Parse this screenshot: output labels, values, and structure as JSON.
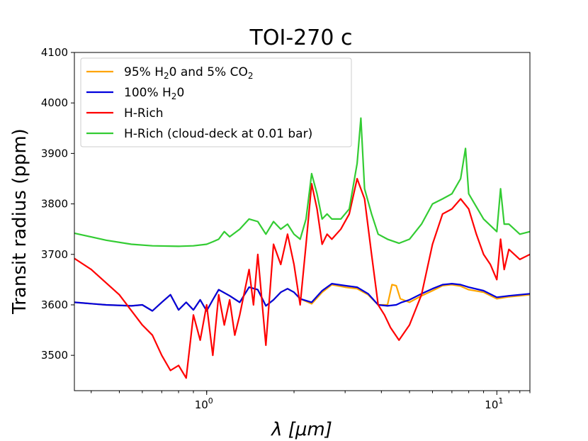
{
  "chart_data": {
    "type": "line",
    "title": "TOI-270 c",
    "xlabel": "λ [μm]",
    "ylabel": "Transit radius (ppm)",
    "xscale": "log",
    "xlim": [
      0.35,
      13
    ],
    "ylim": [
      3430,
      4100
    ],
    "yticks": [
      3500,
      3600,
      3700,
      3800,
      3900,
      4000,
      4100
    ],
    "xticks": [
      {
        "value": 1,
        "base": "10",
        "exp": "0"
      },
      {
        "value": 10,
        "base": "10",
        "exp": "1"
      }
    ],
    "legend": {
      "position": "upper-left",
      "entries": [
        {
          "pre": "95% H",
          "sub1": "2",
          "mid": "0 and 5% CO",
          "sub2": "2",
          "color": "#ffa500"
        },
        {
          "pre": "100% H",
          "sub1": "2",
          "mid": "0",
          "sub2": "",
          "color": "#0000dd"
        },
        {
          "pre": "H-Rich",
          "sub1": "",
          "mid": "",
          "sub2": "",
          "color": "#ff0000"
        },
        {
          "pre": "H-Rich (cloud-deck at 0.01 bar)",
          "sub1": "",
          "mid": "",
          "sub2": "",
          "color": "#33cc33"
        }
      ]
    },
    "series": [
      {
        "name": "95% H2O and 5% CO2",
        "color": "#ffa500",
        "points": [
          [
            0.35,
            3605
          ],
          [
            0.45,
            3600
          ],
          [
            0.55,
            3598
          ],
          [
            0.6,
            3600
          ],
          [
            0.65,
            3588
          ],
          [
            0.7,
            3605
          ],
          [
            0.75,
            3620
          ],
          [
            0.8,
            3590
          ],
          [
            0.85,
            3605
          ],
          [
            0.9,
            3590
          ],
          [
            0.95,
            3610
          ],
          [
            1.0,
            3588
          ],
          [
            1.05,
            3610
          ],
          [
            1.1,
            3630
          ],
          [
            1.2,
            3618
          ],
          [
            1.3,
            3605
          ],
          [
            1.4,
            3635
          ],
          [
            1.5,
            3630
          ],
          [
            1.6,
            3598
          ],
          [
            1.7,
            3610
          ],
          [
            1.8,
            3625
          ],
          [
            1.9,
            3632
          ],
          [
            2.0,
            3625
          ],
          [
            2.1,
            3612
          ],
          [
            2.3,
            3602
          ],
          [
            2.5,
            3625
          ],
          [
            2.7,
            3640
          ],
          [
            3.0,
            3635
          ],
          [
            3.3,
            3632
          ],
          [
            3.6,
            3620
          ],
          [
            3.9,
            3600
          ],
          [
            4.2,
            3600
          ],
          [
            4.35,
            3640
          ],
          [
            4.5,
            3638
          ],
          [
            4.65,
            3612
          ],
          [
            5.0,
            3605
          ],
          [
            5.5,
            3618
          ],
          [
            6.0,
            3628
          ],
          [
            6.5,
            3638
          ],
          [
            7.0,
            3640
          ],
          [
            7.5,
            3637
          ],
          [
            8.0,
            3630
          ],
          [
            9.0,
            3625
          ],
          [
            10.0,
            3612
          ],
          [
            11.0,
            3616
          ],
          [
            12.0,
            3618
          ],
          [
            13.0,
            3620
          ]
        ]
      },
      {
        "name": "100% H2O",
        "color": "#0000dd",
        "points": [
          [
            0.35,
            3605
          ],
          [
            0.45,
            3600
          ],
          [
            0.55,
            3598
          ],
          [
            0.6,
            3600
          ],
          [
            0.65,
            3588
          ],
          [
            0.7,
            3605
          ],
          [
            0.75,
            3620
          ],
          [
            0.8,
            3590
          ],
          [
            0.85,
            3605
          ],
          [
            0.9,
            3590
          ],
          [
            0.95,
            3610
          ],
          [
            1.0,
            3588
          ],
          [
            1.05,
            3610
          ],
          [
            1.1,
            3630
          ],
          [
            1.2,
            3618
          ],
          [
            1.3,
            3605
          ],
          [
            1.4,
            3635
          ],
          [
            1.5,
            3630
          ],
          [
            1.6,
            3598
          ],
          [
            1.7,
            3610
          ],
          [
            1.8,
            3625
          ],
          [
            1.9,
            3632
          ],
          [
            2.0,
            3625
          ],
          [
            2.1,
            3612
          ],
          [
            2.3,
            3605
          ],
          [
            2.5,
            3628
          ],
          [
            2.7,
            3642
          ],
          [
            3.0,
            3638
          ],
          [
            3.3,
            3635
          ],
          [
            3.6,
            3622
          ],
          [
            3.9,
            3600
          ],
          [
            4.2,
            3598
          ],
          [
            4.5,
            3600
          ],
          [
            4.7,
            3605
          ],
          [
            5.0,
            3610
          ],
          [
            5.5,
            3622
          ],
          [
            6.0,
            3632
          ],
          [
            6.5,
            3640
          ],
          [
            7.0,
            3642
          ],
          [
            7.5,
            3640
          ],
          [
            8.0,
            3635
          ],
          [
            9.0,
            3628
          ],
          [
            10.0,
            3615
          ],
          [
            11.0,
            3618
          ],
          [
            12.0,
            3620
          ],
          [
            13.0,
            3622
          ]
        ]
      },
      {
        "name": "H-Rich",
        "color": "#ff0000",
        "points": [
          [
            0.35,
            3692
          ],
          [
            0.4,
            3670
          ],
          [
            0.5,
            3620
          ],
          [
            0.6,
            3560
          ],
          [
            0.65,
            3540
          ],
          [
            0.7,
            3500
          ],
          [
            0.75,
            3470
          ],
          [
            0.8,
            3480
          ],
          [
            0.85,
            3455
          ],
          [
            0.9,
            3580
          ],
          [
            0.95,
            3530
          ],
          [
            1.0,
            3600
          ],
          [
            1.05,
            3500
          ],
          [
            1.1,
            3620
          ],
          [
            1.15,
            3560
          ],
          [
            1.2,
            3610
          ],
          [
            1.25,
            3540
          ],
          [
            1.3,
            3580
          ],
          [
            1.4,
            3670
          ],
          [
            1.45,
            3600
          ],
          [
            1.5,
            3700
          ],
          [
            1.6,
            3520
          ],
          [
            1.7,
            3720
          ],
          [
            1.8,
            3680
          ],
          [
            1.9,
            3740
          ],
          [
            2.0,
            3680
          ],
          [
            2.1,
            3600
          ],
          [
            2.2,
            3720
          ],
          [
            2.3,
            3840
          ],
          [
            2.4,
            3790
          ],
          [
            2.5,
            3720
          ],
          [
            2.6,
            3740
          ],
          [
            2.7,
            3730
          ],
          [
            2.9,
            3750
          ],
          [
            3.1,
            3780
          ],
          [
            3.3,
            3850
          ],
          [
            3.5,
            3810
          ],
          [
            3.7,
            3700
          ],
          [
            3.9,
            3600
          ],
          [
            4.1,
            3580
          ],
          [
            4.3,
            3555
          ],
          [
            4.6,
            3530
          ],
          [
            5.0,
            3560
          ],
          [
            5.5,
            3620
          ],
          [
            6.0,
            3720
          ],
          [
            6.5,
            3780
          ],
          [
            7.0,
            3790
          ],
          [
            7.5,
            3810
          ],
          [
            8.0,
            3790
          ],
          [
            8.5,
            3740
          ],
          [
            9.0,
            3700
          ],
          [
            9.5,
            3680
          ],
          [
            10.0,
            3650
          ],
          [
            10.3,
            3730
          ],
          [
            10.6,
            3670
          ],
          [
            11.0,
            3710
          ],
          [
            12.0,
            3690
          ],
          [
            13.0,
            3700
          ]
        ]
      },
      {
        "name": "H-Rich (cloud-deck at 0.01 bar)",
        "color": "#33cc33",
        "points": [
          [
            0.35,
            3742
          ],
          [
            0.45,
            3728
          ],
          [
            0.55,
            3720
          ],
          [
            0.65,
            3717
          ],
          [
            0.8,
            3716
          ],
          [
            0.9,
            3717
          ],
          [
            1.0,
            3720
          ],
          [
            1.05,
            3725
          ],
          [
            1.1,
            3730
          ],
          [
            1.15,
            3745
          ],
          [
            1.2,
            3735
          ],
          [
            1.3,
            3750
          ],
          [
            1.4,
            3770
          ],
          [
            1.5,
            3765
          ],
          [
            1.6,
            3740
          ],
          [
            1.7,
            3765
          ],
          [
            1.8,
            3750
          ],
          [
            1.9,
            3760
          ],
          [
            2.0,
            3740
          ],
          [
            2.1,
            3730
          ],
          [
            2.2,
            3770
          ],
          [
            2.3,
            3860
          ],
          [
            2.4,
            3820
          ],
          [
            2.5,
            3770
          ],
          [
            2.6,
            3780
          ],
          [
            2.7,
            3770
          ],
          [
            2.9,
            3770
          ],
          [
            3.1,
            3790
          ],
          [
            3.3,
            3880
          ],
          [
            3.4,
            3970
          ],
          [
            3.5,
            3830
          ],
          [
            3.7,
            3780
          ],
          [
            3.9,
            3740
          ],
          [
            4.2,
            3730
          ],
          [
            4.6,
            3722
          ],
          [
            5.0,
            3730
          ],
          [
            5.5,
            3760
          ],
          [
            6.0,
            3800
          ],
          [
            6.5,
            3810
          ],
          [
            7.0,
            3820
          ],
          [
            7.5,
            3850
          ],
          [
            7.8,
            3910
          ],
          [
            8.0,
            3820
          ],
          [
            9.0,
            3770
          ],
          [
            10.0,
            3745
          ],
          [
            10.3,
            3830
          ],
          [
            10.6,
            3760
          ],
          [
            11.0,
            3760
          ],
          [
            12.0,
            3740
          ],
          [
            13.0,
            3745
          ]
        ]
      }
    ]
  }
}
